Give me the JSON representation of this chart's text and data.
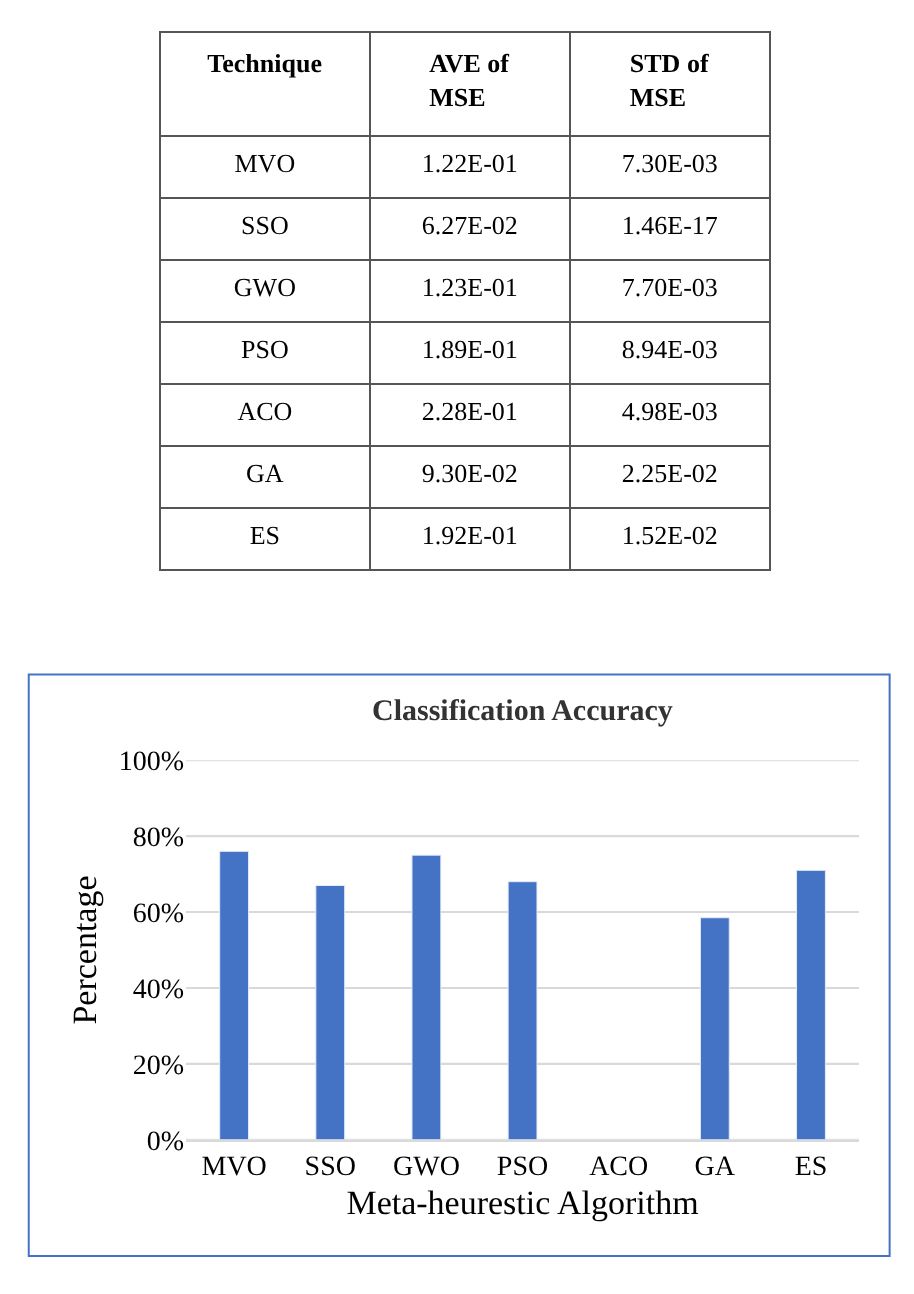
{
  "chart_data": [
    {
      "type": "other",
      "categories": [
        "Technique",
        "AVE of MSE",
        "STD of MSE"
      ],
      "cell_labels": [
        [
          "MVO",
          "1.22E-01",
          "7.30E-03"
        ],
        [
          "SSO",
          "6.27E-02",
          "1.46E-17"
        ],
        [
          "GWO",
          "1.23E-01",
          "7.70E-03"
        ],
        [
          "PSO",
          "1.89E-01",
          "8.94E-03"
        ],
        [
          "ACO",
          "2.28E-01",
          "4.98E-03"
        ],
        [
          "GA",
          "9.30E-02",
          "2.25E-02"
        ],
        [
          "ES",
          "1.92E-01",
          "1.52E-02"
        ]
      ]
    },
    {
      "type": "bar",
      "title": "Classification Accuracy",
      "xlabel": "Meta-heurestic Algorithm",
      "ylabel": "Percentage",
      "categories": [
        "MVO",
        "SSO",
        "GWO",
        "PSO",
        "ACO",
        "GA",
        "ES"
      ],
      "values": [
        76,
        67,
        75,
        68,
        null,
        58.5,
        71
      ],
      "color": "#4472c4",
      "ylim": [
        0,
        100
      ],
      "yticks": [
        {
          "value": 0,
          "label": "0%"
        },
        {
          "value": 20,
          "label": "20%"
        },
        {
          "value": 40,
          "label": "40%"
        },
        {
          "value": 60,
          "label": "60%"
        },
        {
          "value": 80,
          "label": "80%"
        },
        {
          "value": 100,
          "label": "100%"
        }
      ],
      "grid": "y"
    }
  ]
}
